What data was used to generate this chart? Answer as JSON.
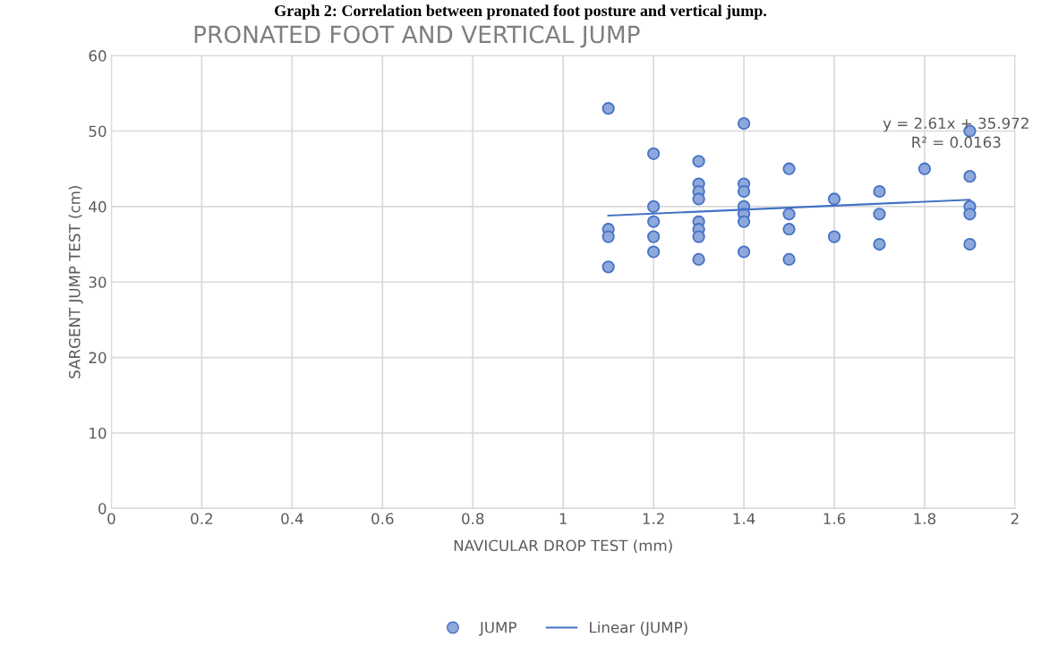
{
  "chart_data": {
    "type": "scatter",
    "title": "PRONATED FOOT AND VERTICAL JUMP",
    "subtitle": "Graph 2: Correlation between pronated foot posture and vertical jump.",
    "xlabel": "NAVICULAR DROP TEST (mm)",
    "ylabel": "SARGENT JUMP TEST (cm)",
    "series": [
      {
        "name": "JUMP",
        "color": "#8fa8dc",
        "marker": "circle",
        "x": [
          1.1,
          1.1,
          1.1,
          1.1,
          1.2,
          1.2,
          1.2,
          1.2,
          1.2,
          1.3,
          1.3,
          1.3,
          1.3,
          1.3,
          1.3,
          1.3,
          1.3,
          1.4,
          1.4,
          1.4,
          1.4,
          1.4,
          1.4,
          1.4,
          1.5,
          1.5,
          1.5,
          1.5,
          1.6,
          1.6,
          1.7,
          1.7,
          1.7,
          1.8,
          1.9,
          1.9,
          1.9,
          1.9,
          1.9
        ],
        "values": [
          53,
          37,
          36,
          32,
          47,
          40,
          38,
          36,
          34,
          46,
          43,
          42,
          41,
          38,
          37,
          36,
          33,
          51,
          43,
          42,
          40,
          39,
          38,
          34,
          45,
          39,
          37,
          33,
          41,
          36,
          42,
          39,
          35,
          45,
          50,
          44,
          40,
          39,
          35
        ]
      },
      {
        "name": "Linear (JUMP)",
        "type": "line",
        "color": "#4472c4",
        "x": [
          1.1,
          1.9
        ],
        "values": [
          38.8,
          40.9
        ]
      }
    ],
    "annotations": [
      "y = 2.61x + 35.972\nR² = 0.0163"
    ],
    "xlim": [
      0,
      2
    ],
    "xticks": [
      0,
      0.2,
      0.4,
      0.6,
      0.8,
      1,
      1.2,
      1.4,
      1.6,
      1.8,
      2
    ],
    "ylim": [
      0,
      60
    ],
    "yticks": [
      0,
      10,
      20,
      30,
      40,
      50,
      60
    ],
    "grid": true,
    "legend": "bottom"
  }
}
